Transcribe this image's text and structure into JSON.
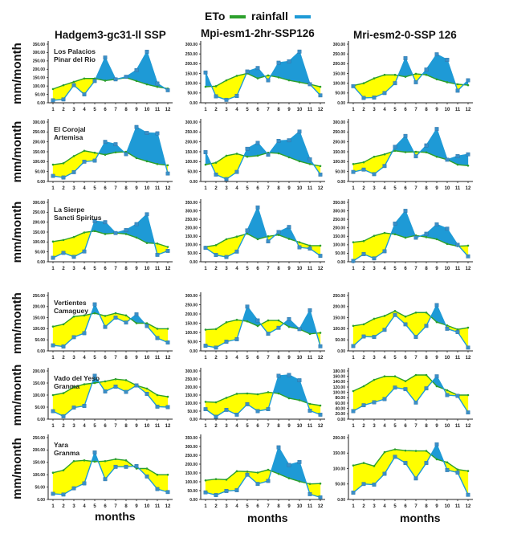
{
  "legend": {
    "eto_label": "ETo",
    "rainfall_label": "rainfall"
  },
  "colors": {
    "eto": "#2ca02c",
    "rainfall": "#1e9ad6",
    "deficit_fill": "#ffff00",
    "surplus_fill": "#1e9ad6"
  },
  "column_titles": [
    "Hadgem3-gc31-ll SSP",
    "Mpi-esm1-2hr-SSP126",
    "Mri-esm2-0-SSP 126"
  ],
  "ylabel": "mm/month",
  "xlabel": "months",
  "chart_data": [
    {
      "type": "line",
      "location": [
        "Los Palacios",
        "Pinar del Rio"
      ],
      "model": "Hadgem3-gc31-ll SSP",
      "x": [
        1,
        2,
        3,
        4,
        5,
        6,
        7,
        8,
        9,
        10,
        11,
        12
      ],
      "ylim": [
        0,
        350
      ],
      "ystep": 50,
      "series": [
        {
          "name": "ETo",
          "values": [
            82,
            105,
            125,
            145,
            145,
            132,
            140,
            150,
            130,
            110,
            95,
            85
          ]
        },
        {
          "name": "rainfall",
          "values": [
            15,
            20,
            105,
            50,
            130,
            270,
            140,
            155,
            195,
            305,
            115,
            75
          ]
        }
      ]
    },
    {
      "type": "line",
      "location": [],
      "model": "Mpi-esm1-2hr-SSP126",
      "x": [
        1,
        2,
        3,
        4,
        5,
        6,
        7,
        8,
        9,
        10,
        11,
        12
      ],
      "ylim": [
        0,
        300
      ],
      "ystep": 50,
      "series": [
        {
          "name": "ETo",
          "values": [
            82,
            85,
            115,
            138,
            150,
            125,
            140,
            130,
            115,
            105,
            95,
            82
          ]
        },
        {
          "name": "rainfall",
          "values": [
            155,
            33,
            15,
            35,
            160,
            178,
            115,
            205,
            212,
            262,
            95,
            38
          ]
        }
      ]
    },
    {
      "type": "line",
      "location": [],
      "model": "Mri-esm2-0-SSP 126",
      "x": [
        1,
        2,
        3,
        4,
        5,
        6,
        7,
        8,
        9,
        10,
        11,
        12
      ],
      "ylim": [
        0,
        300
      ],
      "ystep": 50,
      "series": [
        {
          "name": "ETo",
          "values": [
            88,
            100,
            125,
            143,
            143,
            133,
            148,
            143,
            120,
            105,
            95,
            90
          ]
        },
        {
          "name": "rainfall",
          "values": [
            85,
            25,
            27,
            50,
            100,
            228,
            105,
            170,
            248,
            220,
            62,
            115
          ]
        }
      ]
    },
    {
      "type": "line",
      "location": [
        "El Corojal",
        "Artemisa"
      ],
      "model": "Hadgem3-gc31-ll SSP",
      "x": [
        1,
        2,
        3,
        4,
        5,
        6,
        7,
        8,
        9,
        10,
        11,
        12
      ],
      "ylim": [
        0,
        300
      ],
      "ystep": 50,
      "series": [
        {
          "name": "ETo",
          "values": [
            85,
            92,
            128,
            155,
            145,
            135,
            147,
            150,
            118,
            102,
            88,
            82
          ]
        },
        {
          "name": "rainfall",
          "values": [
            28,
            20,
            47,
            100,
            105,
            200,
            188,
            138,
            275,
            245,
            243,
            40
          ]
        }
      ]
    },
    {
      "type": "line",
      "location": [],
      "model": "Mpi-esm1-2hr-SSP126",
      "x": [
        1,
        2,
        3,
        4,
        5,
        6,
        7,
        8,
        9,
        10,
        11,
        12
      ],
      "ylim": [
        0,
        300
      ],
      "ystep": 50,
      "series": [
        {
          "name": "ETo",
          "values": [
            85,
            95,
            130,
            140,
            125,
            130,
            145,
            142,
            122,
            102,
            88,
            78
          ]
        },
        {
          "name": "rainfall",
          "values": [
            148,
            35,
            12,
            48,
            165,
            195,
            135,
            205,
            208,
            252,
            112,
            35
          ]
        }
      ]
    },
    {
      "type": "line",
      "location": [],
      "model": "Mri-esm2-0-SSP 126",
      "x": [
        1,
        2,
        3,
        4,
        5,
        6,
        7,
        8,
        9,
        10,
        11,
        12
      ],
      "ylim": [
        0,
        300
      ],
      "ystep": 50,
      "series": [
        {
          "name": "ETo",
          "values": [
            88,
            97,
            125,
            137,
            155,
            148,
            150,
            147,
            125,
            110,
            85,
            80
          ]
        },
        {
          "name": "rainfall",
          "values": [
            48,
            60,
            37,
            78,
            175,
            230,
            127,
            182,
            265,
            110,
            128,
            137
          ]
        }
      ]
    },
    {
      "type": "line",
      "location": [
        "La Sierpe",
        "Sancti Spiritus"
      ],
      "model": "Hadgem3-gc31-ll SSP",
      "x": [
        1,
        2,
        3,
        4,
        5,
        6,
        7,
        8,
        9,
        10,
        11,
        12
      ],
      "ylim": [
        0,
        300
      ],
      "ystep": 50,
      "series": [
        {
          "name": "ETo",
          "values": [
            102,
            110,
            125,
            148,
            155,
            140,
            145,
            140,
            122,
            95,
            92,
            75
          ]
        },
        {
          "name": "rainfall",
          "values": [
            20,
            45,
            25,
            52,
            205,
            200,
            145,
            160,
            190,
            240,
            35,
            55
          ]
        }
      ]
    },
    {
      "type": "line",
      "location": [],
      "model": "Mpi-esm1-2hr-SSP126",
      "x": [
        1,
        2,
        3,
        4,
        5,
        6,
        7,
        8,
        9,
        10,
        11,
        12
      ],
      "ylim": [
        0,
        350
      ],
      "ystep": 50,
      "series": [
        {
          "name": "ETo",
          "values": [
            88,
            98,
            133,
            148,
            165,
            133,
            150,
            158,
            135,
            115,
            95,
            95
          ]
        },
        {
          "name": "rainfall",
          "values": [
            82,
            40,
            28,
            60,
            185,
            320,
            120,
            175,
            205,
            85,
            78,
            35
          ]
        }
      ]
    },
    {
      "type": "line",
      "location": [],
      "model": "Mri-esm2-0-SSP 126",
      "x": [
        1,
        2,
        3,
        4,
        5,
        6,
        7,
        8,
        9,
        10,
        11,
        12
      ],
      "ylim": [
        0,
        350
      ],
      "ystep": 50,
      "series": [
        {
          "name": "ETo",
          "values": [
            115,
            122,
            153,
            170,
            162,
            142,
            155,
            145,
            133,
            105,
            92,
            95
          ]
        },
        {
          "name": "rainfall",
          "values": [
            5,
            45,
            20,
            62,
            225,
            300,
            142,
            165,
            220,
            195,
            100,
            32
          ]
        }
      ]
    },
    {
      "type": "line",
      "location": [
        "Vertientes",
        "Camaguey"
      ],
      "model": "Hadgem3-gc31-ll SSP",
      "x": [
        1,
        2,
        3,
        4,
        5,
        6,
        7,
        8,
        9,
        10,
        11,
        12
      ],
      "ylim": [
        0,
        250
      ],
      "ystep": 50,
      "series": [
        {
          "name": "ETo",
          "values": [
            110,
            120,
            155,
            160,
            170,
            158,
            170,
            160,
            125,
            125,
            100,
            100
          ]
        },
        {
          "name": "rainfall",
          "values": [
            25,
            20,
            62,
            80,
            210,
            108,
            150,
            128,
            165,
            112,
            58,
            38
          ]
        }
      ]
    },
    {
      "type": "line",
      "location": [],
      "model": "Mpi-esm1-2hr-SSP126",
      "x": [
        1,
        2,
        3,
        4,
        5,
        6,
        7,
        8,
        9,
        10,
        11,
        12
      ],
      "ylim": [
        0,
        300
      ],
      "ystep": 50,
      "series": [
        {
          "name": "ETo",
          "values": [
            115,
            118,
            155,
            168,
            160,
            135,
            165,
            165,
            130,
            118,
            92,
            98
          ]
        },
        {
          "name": "rainfall",
          "values": [
            28,
            18,
            50,
            63,
            240,
            165,
            93,
            125,
            172,
            118,
            220,
            25
          ]
        }
      ]
    },
    {
      "type": "line",
      "location": [],
      "model": "Mri-esm2-0-SSP 126",
      "x": [
        1,
        2,
        3,
        4,
        5,
        6,
        7,
        8,
        9,
        10,
        11,
        12
      ],
      "ylim": [
        0,
        250
      ],
      "ystep": 50,
      "series": [
        {
          "name": "ETo",
          "values": [
            113,
            120,
            145,
            158,
            180,
            155,
            173,
            173,
            130,
            115,
            97,
            105
          ]
        },
        {
          "name": "rainfall",
          "values": [
            22,
            65,
            63,
            95,
            162,
            120,
            63,
            113,
            207,
            100,
            85,
            15
          ]
        }
      ]
    },
    {
      "type": "line",
      "location": [
        "Vado del Yeso",
        "Granma"
      ],
      "model": "Hadgem3-gc31-ll SSP",
      "x": [
        1,
        2,
        3,
        4,
        5,
        6,
        7,
        8,
        9,
        10,
        11,
        12
      ],
      "ylim": [
        0,
        200
      ],
      "ystep": 50,
      "series": [
        {
          "name": "ETo",
          "values": [
            100,
            108,
            133,
            145,
            150,
            157,
            166,
            162,
            140,
            127,
            100,
            93
          ]
        },
        {
          "name": "rainfall",
          "values": [
            33,
            12,
            48,
            55,
            180,
            115,
            135,
            113,
            140,
            105,
            52,
            50
          ]
        }
      ]
    },
    {
      "type": "line",
      "location": [],
      "model": "Mpi-esm1-2hr-SSP126",
      "x": [
        1,
        2,
        3,
        4,
        5,
        6,
        7,
        8,
        9,
        10,
        11,
        12
      ],
      "ylim": [
        0,
        300
      ],
      "ystep": 50,
      "series": [
        {
          "name": "ETo",
          "values": [
            108,
            105,
            133,
            158,
            160,
            155,
            168,
            160,
            130,
            118,
            95,
            85
          ]
        },
        {
          "name": "rainfall",
          "values": [
            62,
            15,
            58,
            28,
            93,
            50,
            62,
            270,
            275,
            242,
            53,
            28
          ]
        }
      ]
    },
    {
      "type": "line",
      "location": [],
      "model": "Mri-esm2-0-SSP 126",
      "x": [
        1,
        2,
        3,
        4,
        5,
        6,
        7,
        8,
        9,
        10,
        11,
        12
      ],
      "ylim": [
        0,
        180
      ],
      "ystep": 20,
      "series": [
        {
          "name": "ETo",
          "values": [
            105,
            123,
            147,
            160,
            160,
            142,
            165,
            165,
            123,
            108,
            90,
            90
          ]
        },
        {
          "name": "rainfall",
          "values": [
            30,
            52,
            63,
            75,
            118,
            112,
            62,
            115,
            160,
            90,
            87,
            25
          ]
        }
      ]
    },
    {
      "type": "line",
      "location": [
        "Yara",
        "Granma"
      ],
      "model": "Hadgem3-gc31-ll SSP",
      "x": [
        1,
        2,
        3,
        4,
        5,
        6,
        7,
        8,
        9,
        10,
        11,
        12
      ],
      "ylim": [
        0,
        250
      ],
      "ystep": 50,
      "series": [
        {
          "name": "ETo",
          "values": [
            108,
            118,
            155,
            158,
            153,
            155,
            163,
            158,
            125,
            125,
            100,
            100
          ]
        },
        {
          "name": "rainfall",
          "values": [
            23,
            20,
            45,
            65,
            190,
            82,
            132,
            132,
            135,
            93,
            42,
            30
          ]
        }
      ]
    },
    {
      "type": "line",
      "location": [],
      "model": "Mpi-esm1-2hr-SSP126",
      "x": [
        1,
        2,
        3,
        4,
        5,
        6,
        7,
        8,
        9,
        10,
        11,
        12
      ],
      "ylim": [
        0,
        350
      ],
      "ystep": 50,
      "series": [
        {
          "name": "ETo",
          "values": [
            108,
            115,
            112,
            160,
            158,
            152,
            168,
            145,
            120,
            102,
            88,
            90
          ]
        },
        {
          "name": "rainfall",
          "values": [
            40,
            25,
            48,
            52,
            140,
            88,
            105,
            295,
            195,
            212,
            30,
            12
          ]
        }
      ]
    },
    {
      "type": "line",
      "location": [],
      "model": "Mri-esm2-0-SSP 126",
      "x": [
        1,
        2,
        3,
        4,
        5,
        6,
        7,
        8,
        9,
        10,
        11,
        12
      ],
      "ylim": [
        0,
        200
      ],
      "ystep": 50,
      "series": [
        {
          "name": "ETo",
          "values": [
            110,
            118,
            108,
            153,
            162,
            158,
            157,
            157,
            130,
            120,
            97,
            92
          ]
        },
        {
          "name": "rainfall",
          "values": [
            22,
            50,
            48,
            83,
            138,
            118,
            68,
            118,
            178,
            95,
            87,
            15
          ]
        }
      ]
    }
  ]
}
